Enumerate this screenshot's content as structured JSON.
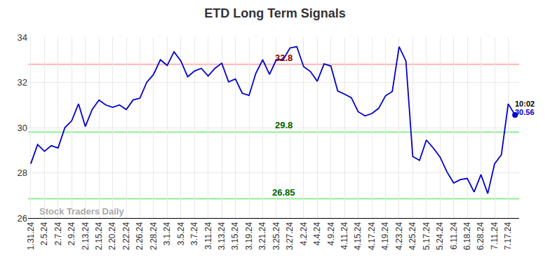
{
  "chart_data": {
    "type": "line",
    "title": "ETD Long Term Signals",
    "categories": [
      "1.31.24",
      null,
      "2.5.24",
      null,
      "2.7.24",
      null,
      "2.9.24",
      null,
      "2.13.24",
      null,
      "2.15.24",
      null,
      "2.20.24",
      null,
      "2.22.24",
      null,
      "2.26.24",
      null,
      "2.28.24",
      null,
      "3.1.24",
      null,
      "3.5.24",
      null,
      "3.7.24",
      null,
      "3.11.24",
      null,
      "3.13.24",
      null,
      "3.15.24",
      null,
      "3.19.24",
      null,
      "3.21.24",
      null,
      "3.25.24",
      null,
      "3.27.24",
      null,
      "4.2.24",
      null,
      "4.4.24",
      null,
      "4.9.24",
      null,
      "4.11.24",
      null,
      "4.15.24",
      null,
      "4.17.24",
      null,
      "4.19.24",
      null,
      "4.23.24",
      null,
      "4.25.24",
      null,
      "5.17.24",
      null,
      "5.24.24",
      null,
      "6.11.24",
      null,
      "6.18.24",
      null,
      "6.28.24",
      null,
      "7.11.24",
      null,
      "7.17.24",
      null
    ],
    "values": [
      28.4,
      29.25,
      28.95,
      29.2,
      29.1,
      30.0,
      30.3,
      31.05,
      30.05,
      30.8,
      31.22,
      31.0,
      30.9,
      31.0,
      30.8,
      31.22,
      31.3,
      32.0,
      32.35,
      33.0,
      32.75,
      33.35,
      32.95,
      32.25,
      32.5,
      32.62,
      32.28,
      32.62,
      32.85,
      32.02,
      32.15,
      31.52,
      31.42,
      32.4,
      33.0,
      32.35,
      33.0,
      33.0,
      33.52,
      33.58,
      32.7,
      32.48,
      32.05,
      32.82,
      32.72,
      31.62,
      31.48,
      31.32,
      30.7,
      30.52,
      30.62,
      30.85,
      31.4,
      31.6,
      33.58,
      32.95,
      28.72,
      28.55,
      29.45,
      29.1,
      28.7,
      28.05,
      27.55,
      27.7,
      27.75,
      27.15,
      27.92,
      27.08,
      28.4,
      28.8,
      31.05,
      30.56
    ],
    "color": "#0000cc",
    "ylim": [
      26,
      34
    ],
    "yticks": [
      26,
      28,
      30,
      32,
      34
    ],
    "grid": true,
    "levels": [
      {
        "value": 32.8,
        "label": "32.8",
        "color": "#ffb3b3",
        "label_color": "#8b0000"
      },
      {
        "value": 29.8,
        "label": "29.8",
        "color": "#90ee90",
        "label_color": "#006400"
      },
      {
        "value": 26.85,
        "label": "26.85",
        "color": "#90ee90",
        "label_color": "#006400"
      }
    ],
    "last_point": {
      "time_label": "10:02",
      "value_label": "30.56"
    },
    "watermark": "Stock Traders Daily"
  }
}
